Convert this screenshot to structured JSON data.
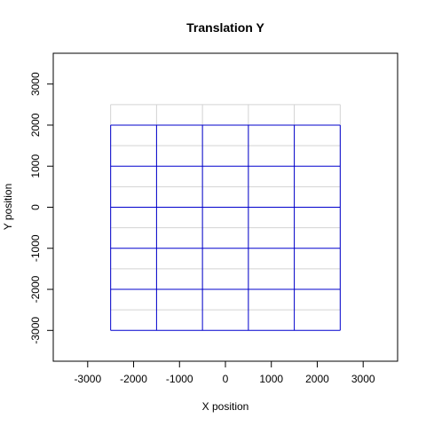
{
  "chart_data": {
    "type": "line",
    "title": "Translation Y",
    "xlabel": "X position",
    "ylabel": "Y position",
    "xlim": [
      -3750,
      3750
    ],
    "ylim": [
      -3750,
      3750
    ],
    "x_ticks": [
      -3000,
      -2000,
      -1000,
      0,
      1000,
      2000,
      3000
    ],
    "y_ticks": [
      -3000,
      -2000,
      -1000,
      0,
      1000,
      2000,
      3000
    ],
    "series": [
      {
        "role": "original grid",
        "color": "#d3d3d3",
        "vertical_lines": {
          "x": [
            -2500,
            -1500,
            -500,
            500,
            1500,
            2500
          ],
          "y_range": [
            -2500,
            2500
          ]
        },
        "horizontal_lines": {
          "y": [
            -2500,
            -1500,
            -500,
            500,
            1500,
            2500
          ],
          "x_range": [
            -2500,
            2500
          ]
        }
      },
      {
        "role": "translated grid",
        "color": "#0000cd",
        "translation_y": -500,
        "vertical_lines": {
          "x": [
            -2500,
            -1500,
            -500,
            500,
            1500,
            2500
          ],
          "y_range": [
            -3000,
            2000
          ]
        },
        "horizontal_lines": {
          "y": [
            -3000,
            -2000,
            -1000,
            0,
            1000,
            2000
          ],
          "x_range": [
            -2500,
            2500
          ]
        }
      }
    ],
    "grid": false,
    "legend": "none"
  }
}
